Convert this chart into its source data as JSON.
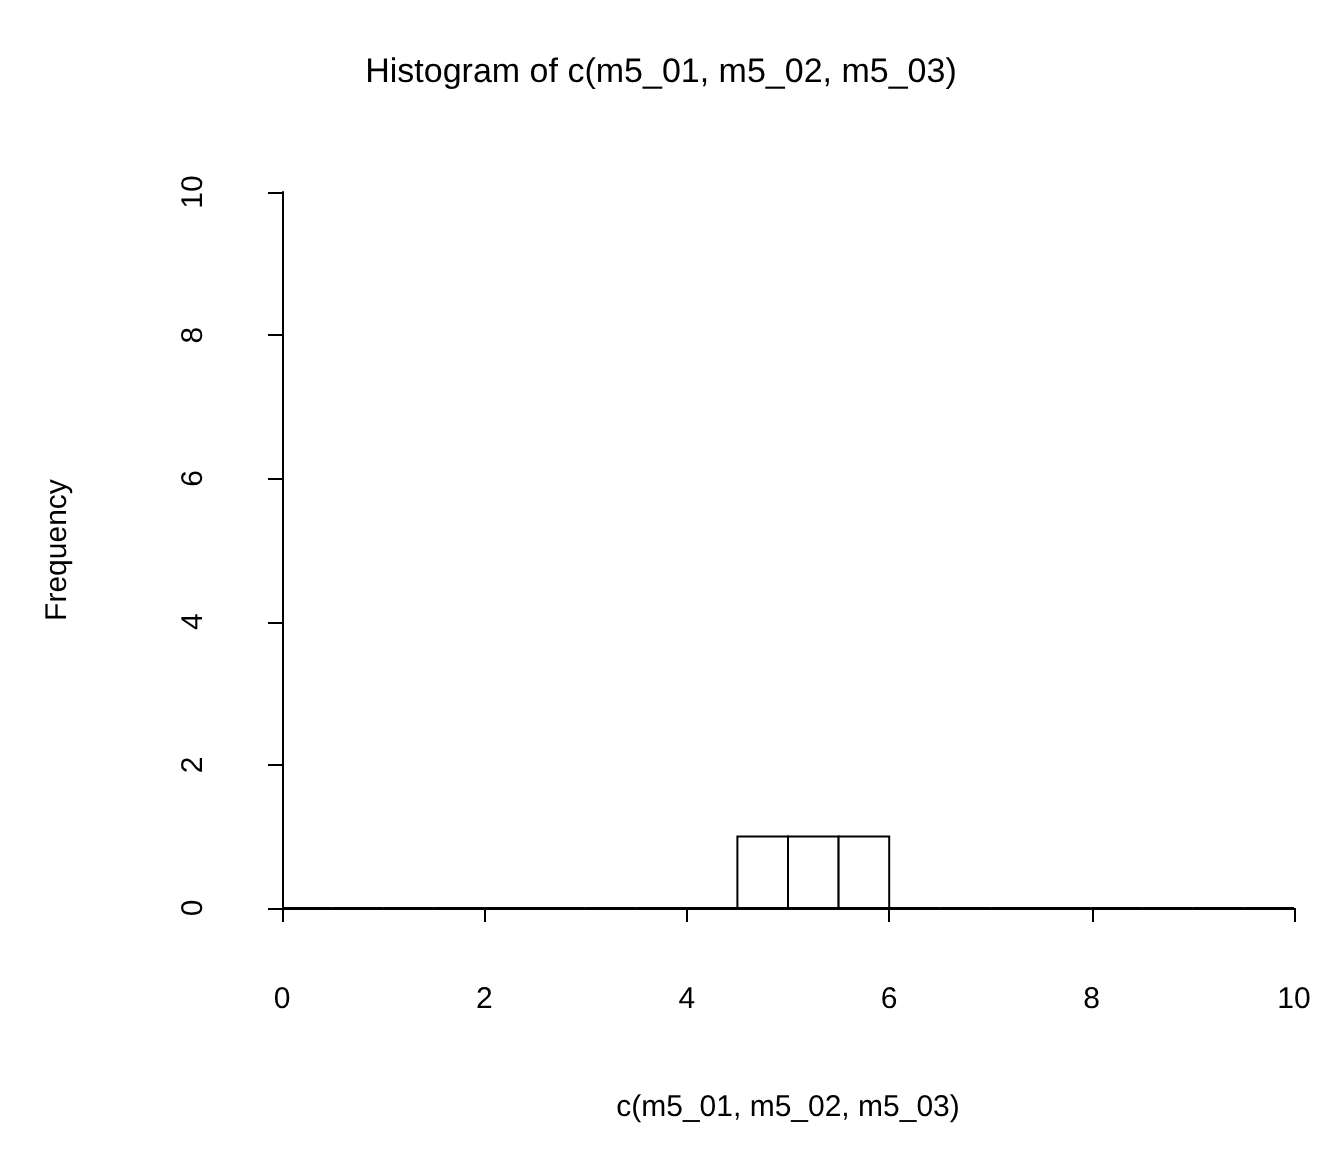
{
  "chart_data": {
    "type": "histogram",
    "title": "Histogram of c(m5_01, m5_02, m5_03)",
    "xlabel": "c(m5_01, m5_02, m5_03)",
    "ylabel": "Frequency",
    "bins": [
      0,
      0.5,
      1,
      1.5,
      2,
      2.5,
      3,
      3.5,
      4,
      4.5,
      5,
      5.5,
      6,
      6.5,
      7,
      7.5,
      8,
      8.5,
      9,
      9.5,
      10
    ],
    "values": [
      0,
      0,
      0,
      0,
      0,
      0,
      0,
      0,
      0,
      1,
      1,
      1,
      0,
      0,
      0,
      0,
      0,
      0,
      0,
      0
    ],
    "xlim": [
      0,
      10
    ],
    "xticks": [
      0,
      2,
      4,
      6,
      8,
      10
    ],
    "ylim": [
      0,
      10
    ],
    "yticks": [
      0,
      2,
      4,
      6,
      8,
      10
    ]
  }
}
